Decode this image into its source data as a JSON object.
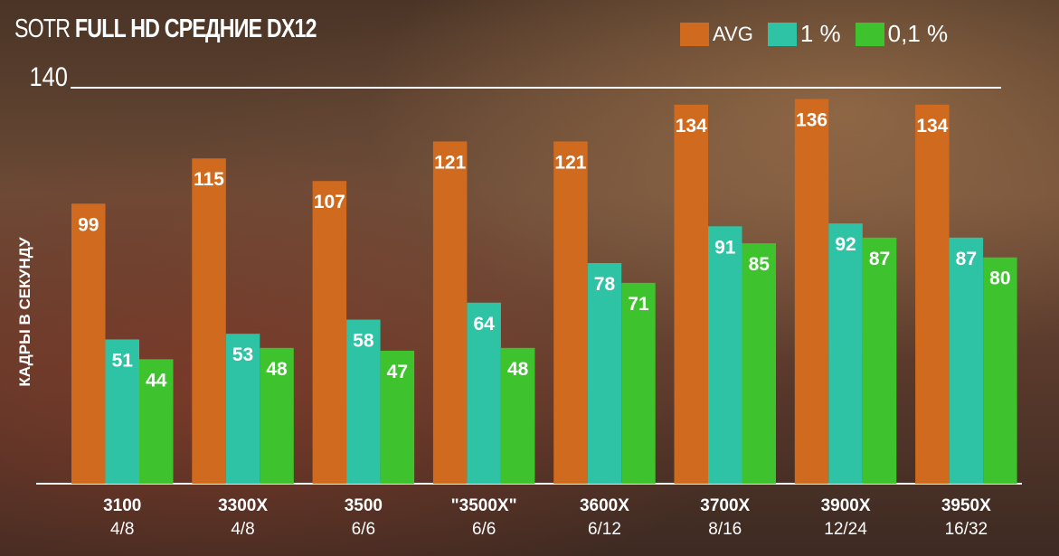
{
  "chart_data": {
    "type": "bar",
    "title_light": "SOTR",
    "title_bold": "FULL HD СРЕДНИЕ DX12",
    "ylabel": "КАДРЫ В СЕКУНДУ",
    "ylim": [
      0,
      140
    ],
    "ytick_label": "140",
    "legend_position": "top-right",
    "categories": [
      "3100",
      "3300X",
      "3500",
      "\"3500X\"",
      "3600X",
      "3700X",
      "3900X",
      "3950X"
    ],
    "subcategories": [
      "4/8",
      "4/8",
      "6/6",
      "6/6",
      "6/12",
      "8/16",
      "12/24",
      "16/32"
    ],
    "series": [
      {
        "name": "AVG",
        "color": "#d06a1e",
        "values": [
          99,
          115,
          107,
          121,
          121,
          134,
          136,
          134
        ]
      },
      {
        "name": "1 %",
        "color": "#2fc3a5",
        "values": [
          51,
          53,
          58,
          64,
          78,
          91,
          92,
          87
        ]
      },
      {
        "name": "0,1 %",
        "color": "#3ec22e",
        "values": [
          44,
          48,
          47,
          48,
          71,
          85,
          87,
          80
        ]
      }
    ]
  }
}
